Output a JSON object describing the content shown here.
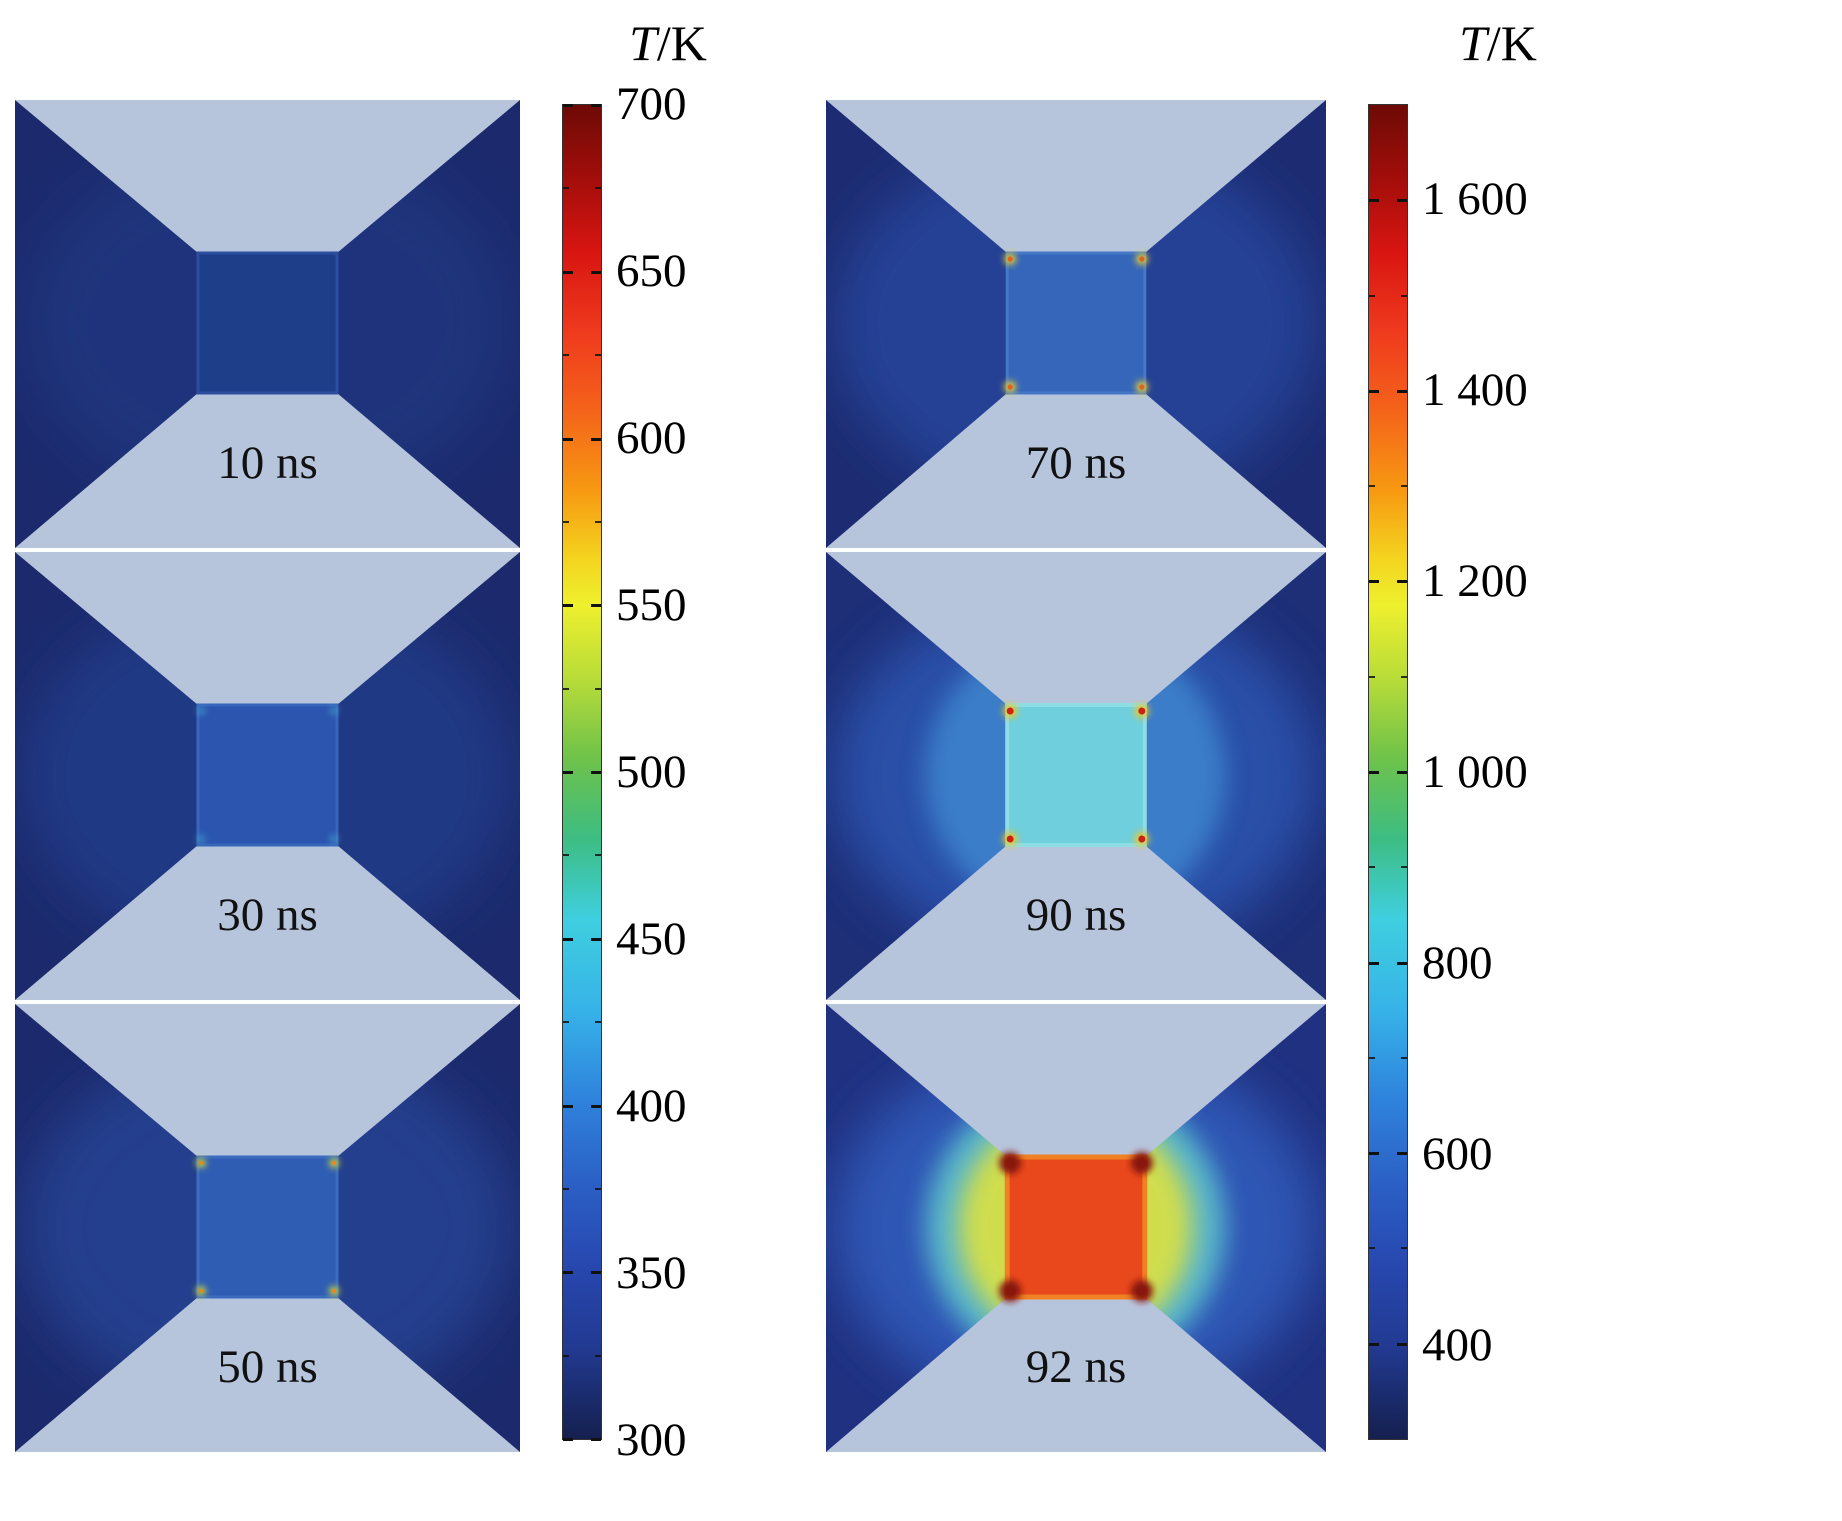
{
  "style": {
    "background": "#ffffff",
    "electrode_color": "#b7c5dc",
    "label_color": "#111111",
    "tick_color": "#222222"
  },
  "panels": [
    {
      "label": "10 ns",
      "bg": "#1c2a6d",
      "halo_color": "#23408d",
      "halo_opacity": 0.45,
      "glow2_opacity": 0,
      "glow_opacity": 0,
      "bridge_fill": "#1f3e8a",
      "bridge_stroke": "#2b4f9e",
      "bridge_stroke_width": 3,
      "dot_outer": null,
      "dot_inner": null,
      "corner_dark": null
    },
    {
      "label": "30 ns",
      "bg": "#1c2a6d",
      "halo_color": "#24418f",
      "halo_opacity": 0.7,
      "glow2_opacity": 0,
      "glow_opacity": 0,
      "bridge_fill": "#2b55ae",
      "bridge_stroke": "#3765bb",
      "bridge_stroke_width": 3,
      "dot_outer": {
        "color": "#4fc9db",
        "r": 4,
        "opacity": 0.55
      },
      "dot_inner": null,
      "corner_dark": null
    },
    {
      "label": "50 ns",
      "bg": "#1c2a6d",
      "halo_color": "#264595",
      "halo_opacity": 0.8,
      "glow2_opacity": 0,
      "glow_opacity": 0,
      "bridge_fill": "#2f5db4",
      "bridge_stroke": "#3b6cc0",
      "bridge_stroke_width": 3,
      "dot_outer": {
        "color": "#cfe03a",
        "r": 5,
        "opacity": 0.95
      },
      "dot_inner": {
        "color": "#e8891e",
        "r": 2.2
      },
      "corner_dark": null
    },
    {
      "label": "70 ns",
      "bg": "#1d2c72",
      "halo_color": "#28479e",
      "halo_opacity": 0.8,
      "glow2_opacity": 0,
      "glow_opacity": 0,
      "bridge_fill": "#3566ba",
      "bridge_stroke": "#4478c7",
      "bridge_stroke_width": 3,
      "dot_outer": {
        "color": "#ecd22c",
        "r": 6,
        "opacity": 0.95
      },
      "dot_inner": {
        "color": "#e2621c",
        "r": 2.6
      },
      "corner_dark": null
    },
    {
      "label": "90 ns",
      "bg": "#1e2f78",
      "halo_color": "#2b51ab",
      "halo_opacity": 0.95,
      "glow2_color": "#4189d0",
      "glow2_opacity": 0.8,
      "glow_opacity": 0,
      "bridge_fill": "#70cfdc",
      "bridge_stroke": "#8fdde4",
      "bridge_stroke_width": 4,
      "dot_outer": {
        "color": "#f2c81e",
        "r": 7,
        "opacity": 0.95
      },
      "dot_inner": {
        "color": "#cc2214",
        "r": 3.5
      },
      "corner_dark": null
    },
    {
      "label": "92 ns",
      "bg": "#203181",
      "halo_color": "#2d57b5",
      "halo_opacity": 1,
      "glow2_color": "#5fc6cf",
      "glow2_opacity": 0.85,
      "glow_color": "#dde23f",
      "glow_opacity": 0.9,
      "bridge_fill": "#e8481c",
      "bridge_stroke": "#f08124",
      "bridge_stroke_width": 5,
      "dot_outer": null,
      "dot_inner": null,
      "corner_dark": "#871409"
    }
  ],
  "colorbars": [
    {
      "title_italic": "T",
      "title_rest": "/K",
      "range_K": [
        300,
        700
      ],
      "ticks": [
        {
          "v": 700,
          "label": "700"
        },
        {
          "v": 650,
          "label": "650"
        },
        {
          "v": 600,
          "label": "600"
        },
        {
          "v": 550,
          "label": "550"
        },
        {
          "v": 500,
          "label": "500"
        },
        {
          "v": 450,
          "label": "450"
        },
        {
          "v": 400,
          "label": "400"
        },
        {
          "v": 350,
          "label": "350"
        },
        {
          "v": 300,
          "label": "300"
        }
      ],
      "gradient_stops": [
        "#6d0a05 0%",
        "#9d0d0a 5%",
        "#d81511 11%",
        "#ef3a1e 17%",
        "#f4641a 23%",
        "#f79a12 29%",
        "#f4d41f 34%",
        "#eef02e 37.5%",
        "#b8dc38 43%",
        "#6ec24a 49%",
        "#3dbd83 55%",
        "#3fcfdf 61%",
        "#36b2e8 68%",
        "#2f86dd 74%",
        "#2b5fc5 81%",
        "#2746ad 87.5%",
        "#223a92 93%",
        "#15204f 100%"
      ]
    },
    {
      "title_italic": "T",
      "title_rest": "/K",
      "range_K": [
        300,
        1700
      ],
      "ticks": [
        {
          "v": 1600,
          "label": "1 600"
        },
        {
          "v": 1400,
          "label": "1 400"
        },
        {
          "v": 1200,
          "label": "1 200"
        },
        {
          "v": 1000,
          "label": "1 000"
        },
        {
          "v": 800,
          "label": "800"
        },
        {
          "v": 600,
          "label": "600"
        },
        {
          "v": 400,
          "label": "400"
        }
      ],
      "gradient_stops": [
        "#6d0a05 0%",
        "#9d0d0a 5%",
        "#d81511 11%",
        "#ef3a1e 17%",
        "#f4641a 23%",
        "#f79a12 29%",
        "#f4d41f 34%",
        "#eef02e 37.5%",
        "#b8dc38 43%",
        "#6ec24a 49%",
        "#3dbd83 55%",
        "#3fcfdf 61%",
        "#36b2e8 68%",
        "#2f86dd 74%",
        "#2b5fc5 81%",
        "#2746ad 87.5%",
        "#223a92 93%",
        "#15204f 100%"
      ]
    }
  ],
  "chart_data": {
    "type": "heatmap",
    "description": "Simulated temperature field (T/K, jet colormap) of a bowtie nanostructure with a central bridge, at six time instants",
    "colormap": "jet",
    "subplots": [
      {
        "time": "10 ns",
        "column": "left",
        "colorbar_range_K": [
          300,
          700
        ],
        "approx_bridge_T_K": 330
      },
      {
        "time": "30 ns",
        "column": "left",
        "colorbar_range_K": [
          300,
          700
        ],
        "approx_bridge_T_K": 370
      },
      {
        "time": "50 ns",
        "column": "left",
        "colorbar_range_K": [
          300,
          700
        ],
        "approx_bridge_T_K": 390,
        "approx_hotspot_T_K": 550
      },
      {
        "time": "70 ns",
        "column": "right",
        "colorbar_range_K": [
          300,
          1700
        ],
        "approx_bridge_T_K": 620,
        "approx_hotspot_T_K": 1200
      },
      {
        "time": "90 ns",
        "column": "right",
        "colorbar_range_K": [
          300,
          1700
        ],
        "approx_bridge_T_K": 820,
        "approx_hotspot_T_K": 1550
      },
      {
        "time": "92 ns",
        "column": "right",
        "colorbar_range_K": [
          300,
          1700
        ],
        "approx_bridge_T_K": 1600
      }
    ],
    "colorbar_left": {
      "title": "T/K",
      "range": [
        300,
        700
      ],
      "tick_values": [
        700,
        650,
        600,
        550,
        500,
        450,
        400,
        350,
        300
      ]
    },
    "colorbar_right": {
      "title": "T/K",
      "range": [
        300,
        1700
      ],
      "tick_values": [
        1600,
        1400,
        1200,
        1000,
        800,
        600,
        400
      ]
    }
  }
}
